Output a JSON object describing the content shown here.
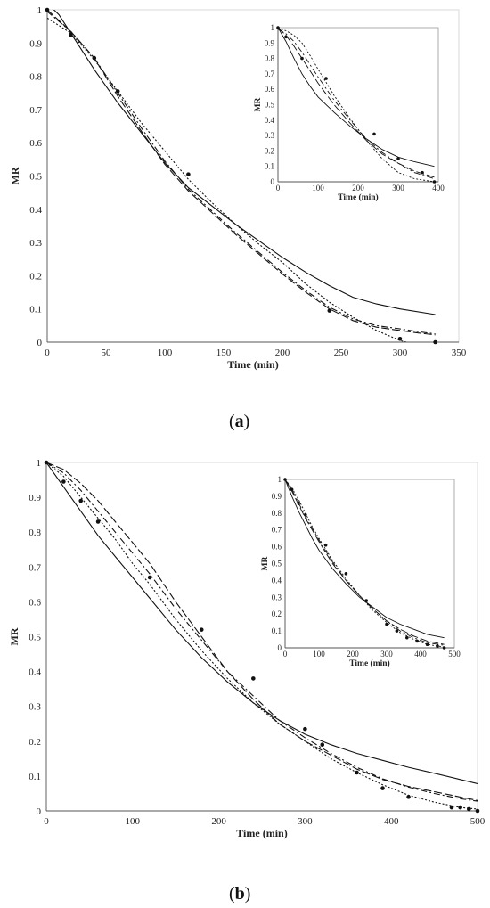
{
  "panels": [
    {
      "label_open": "(",
      "label_letter": "a",
      "label_close": ")"
    },
    {
      "label_open": "(",
      "label_letter": "b",
      "label_close": ")"
    }
  ],
  "chart_data": [
    {
      "type": "line",
      "xlabel": "Time (min)",
      "ylabel": "MR",
      "xlim": [
        0,
        350
      ],
      "ylim": [
        0,
        1
      ],
      "xticks": [
        0,
        50,
        100,
        150,
        200,
        250,
        300,
        350
      ],
      "yticks": [
        0,
        0.1,
        0.2,
        0.3,
        0.4,
        0.5,
        0.6,
        0.7,
        0.8,
        0.9,
        1
      ],
      "grid": false,
      "points": {
        "x": [
          0,
          20,
          40,
          60,
          120,
          240,
          300,
          330
        ],
        "y": [
          1.0,
          0.925,
          0.855,
          0.755,
          0.505,
          0.095,
          0.01,
          0.0
        ]
      },
      "series": [
        {
          "style": "solid",
          "x": [
            0,
            10,
            20,
            40,
            60,
            80,
            100,
            120,
            140,
            160,
            180,
            200,
            220,
            240,
            260,
            280,
            300,
            330
          ],
          "y": [
            1.02,
            0.985,
            0.93,
            0.82,
            0.72,
            0.63,
            0.54,
            0.465,
            0.41,
            0.355,
            0.305,
            0.255,
            0.21,
            0.17,
            0.135,
            0.115,
            0.1,
            0.083
          ]
        },
        {
          "style": "long-dash",
          "x": [
            0,
            20,
            40,
            60,
            80,
            100,
            120,
            140,
            160,
            180,
            200,
            220,
            240,
            260,
            280,
            300,
            315,
            330
          ],
          "y": [
            1.0,
            0.935,
            0.855,
            0.74,
            0.635,
            0.535,
            0.455,
            0.39,
            0.325,
            0.265,
            0.205,
            0.15,
            0.1,
            0.065,
            0.045,
            0.035,
            0.028,
            0.022
          ]
        },
        {
          "style": "dash-dot",
          "x": [
            0,
            20,
            40,
            60,
            80,
            100,
            120,
            140,
            160,
            180,
            200,
            220,
            240,
            260,
            280,
            300,
            315,
            330
          ],
          "y": [
            0.995,
            0.935,
            0.855,
            0.75,
            0.645,
            0.545,
            0.46,
            0.395,
            0.33,
            0.27,
            0.21,
            0.155,
            0.105,
            0.07,
            0.05,
            0.04,
            0.032,
            0.025
          ]
        },
        {
          "style": "dotted",
          "x": [
            0,
            20,
            40,
            60,
            80,
            100,
            120,
            140,
            160,
            180,
            200,
            220,
            240,
            260,
            280,
            300,
            315,
            330
          ],
          "y": [
            0.975,
            0.93,
            0.85,
            0.755,
            0.66,
            0.575,
            0.49,
            0.42,
            0.355,
            0.295,
            0.24,
            0.175,
            0.12,
            0.075,
            0.035,
            0.005,
            -0.01,
            -0.02
          ]
        }
      ],
      "inset": {
        "xlabel": "Time (min)",
        "ylabel": "MR",
        "xlim": [
          0,
          400
        ],
        "ylim": [
          0,
          1
        ],
        "xticks": [
          0,
          100,
          200,
          300,
          400
        ],
        "yticks": [
          0,
          0.1,
          0.2,
          0.3,
          0.4,
          0.5,
          0.6,
          0.7,
          0.8,
          0.9,
          1
        ],
        "points": {
          "x": [
            0,
            20,
            60,
            120,
            240,
            300,
            360,
            390
          ],
          "y": [
            1.0,
            0.94,
            0.8,
            0.67,
            0.31,
            0.15,
            0.06,
            0.0
          ]
        },
        "series": [
          {
            "style": "solid",
            "x": [
              0,
              20,
              40,
              60,
              80,
              100,
              140,
              180,
              220,
              260,
              300,
              340,
              390
            ],
            "y": [
              1.0,
              0.91,
              0.8,
              0.7,
              0.62,
              0.55,
              0.45,
              0.36,
              0.28,
              0.21,
              0.16,
              0.13,
              0.1
            ]
          },
          {
            "style": "long-dash",
            "x": [
              0,
              20,
              40,
              60,
              80,
              100,
              140,
              180,
              220,
              260,
              300,
              340,
              390
            ],
            "y": [
              1.0,
              0.95,
              0.88,
              0.8,
              0.72,
              0.64,
              0.5,
              0.38,
              0.27,
              0.18,
              0.12,
              0.07,
              0.03
            ]
          },
          {
            "style": "dash-dot",
            "x": [
              0,
              20,
              40,
              60,
              80,
              100,
              140,
              180,
              220,
              260,
              300,
              340,
              390
            ],
            "y": [
              0.99,
              0.96,
              0.91,
              0.84,
              0.76,
              0.68,
              0.53,
              0.4,
              0.28,
              0.19,
              0.12,
              0.06,
              0.02
            ]
          },
          {
            "style": "dotted",
            "x": [
              0,
              20,
              40,
              60,
              80,
              100,
              140,
              180,
              220,
              260,
              300,
              340,
              390
            ],
            "y": [
              1.0,
              0.98,
              0.95,
              0.9,
              0.82,
              0.73,
              0.56,
              0.41,
              0.27,
              0.15,
              0.06,
              0.02,
              0.0
            ]
          }
        ]
      }
    },
    {
      "type": "line",
      "xlabel": "Time (min)",
      "ylabel": "MR",
      "xlim": [
        0,
        500
      ],
      "ylim": [
        0,
        1
      ],
      "xticks": [
        0,
        100,
        200,
        300,
        400,
        500
      ],
      "yticks": [
        0,
        0.1,
        0.2,
        0.3,
        0.4,
        0.5,
        0.6,
        0.7,
        0.8,
        0.9,
        1
      ],
      "grid": false,
      "points": {
        "x": [
          0,
          20,
          40,
          60,
          120,
          180,
          240,
          300,
          320,
          360,
          390,
          420,
          470,
          480,
          490,
          500
        ],
        "y": [
          1.0,
          0.945,
          0.89,
          0.83,
          0.67,
          0.52,
          0.38,
          0.235,
          0.19,
          0.11,
          0.065,
          0.04,
          0.01,
          0.01,
          0.005,
          0.0
        ]
      },
      "series": [
        {
          "style": "solid",
          "x": [
            0,
            20,
            40,
            60,
            80,
            100,
            120,
            150,
            180,
            210,
            240,
            270,
            300,
            330,
            360,
            390,
            420,
            450,
            480,
            500
          ],
          "y": [
            1.0,
            0.93,
            0.86,
            0.79,
            0.73,
            0.67,
            0.61,
            0.52,
            0.44,
            0.37,
            0.31,
            0.26,
            0.22,
            0.19,
            0.165,
            0.145,
            0.125,
            0.108,
            0.09,
            0.078
          ]
        },
        {
          "style": "long-dash",
          "x": [
            0,
            20,
            40,
            60,
            80,
            100,
            120,
            150,
            180,
            210,
            240,
            270,
            300,
            330,
            360,
            390,
            420,
            450,
            480,
            500
          ],
          "y": [
            1.0,
            0.98,
            0.94,
            0.89,
            0.83,
            0.77,
            0.71,
            0.6,
            0.5,
            0.4,
            0.32,
            0.25,
            0.2,
            0.16,
            0.12,
            0.09,
            0.07,
            0.055,
            0.04,
            0.03
          ]
        },
        {
          "style": "dash-dot",
          "x": [
            0,
            20,
            40,
            60,
            80,
            100,
            120,
            150,
            180,
            210,
            240,
            270,
            300,
            330,
            360,
            390,
            420,
            450,
            480,
            500
          ],
          "y": [
            1.0,
            0.97,
            0.92,
            0.86,
            0.8,
            0.74,
            0.68,
            0.58,
            0.49,
            0.4,
            0.33,
            0.26,
            0.21,
            0.165,
            0.125,
            0.092,
            0.068,
            0.05,
            0.035,
            0.028
          ]
        },
        {
          "style": "dotted",
          "x": [
            0,
            20,
            40,
            60,
            80,
            100,
            120,
            150,
            180,
            210,
            240,
            270,
            300,
            330,
            360,
            390,
            420,
            450,
            480,
            500
          ],
          "y": [
            1.0,
            0.96,
            0.9,
            0.84,
            0.78,
            0.71,
            0.65,
            0.55,
            0.46,
            0.38,
            0.31,
            0.25,
            0.2,
            0.15,
            0.11,
            0.075,
            0.045,
            0.025,
            0.01,
            0.005
          ]
        }
      ],
      "inset": {
        "xlabel": "Time (min)",
        "ylabel": "MR",
        "xlim": [
          0,
          500
        ],
        "ylim": [
          0,
          1
        ],
        "xticks": [
          0,
          100,
          200,
          300,
          400,
          500
        ],
        "yticks": [
          0,
          0.1,
          0.2,
          0.3,
          0.4,
          0.5,
          0.6,
          0.7,
          0.8,
          0.9,
          1
        ],
        "points": {
          "x": [
            0,
            20,
            40,
            60,
            120,
            180,
            240,
            300,
            330,
            360,
            390,
            420,
            450,
            470
          ],
          "y": [
            1.0,
            0.94,
            0.86,
            0.79,
            0.61,
            0.44,
            0.28,
            0.14,
            0.1,
            0.06,
            0.04,
            0.02,
            0.01,
            0.0
          ]
        },
        "series": [
          {
            "style": "solid",
            "x": [
              0,
              20,
              40,
              60,
              80,
              100,
              140,
              180,
              220,
              260,
              300,
              340,
              380,
              420,
              470
            ],
            "y": [
              1.0,
              0.9,
              0.81,
              0.73,
              0.65,
              0.58,
              0.47,
              0.38,
              0.3,
              0.24,
              0.18,
              0.14,
              0.11,
              0.08,
              0.06
            ]
          },
          {
            "style": "long-dash",
            "x": [
              0,
              20,
              40,
              60,
              80,
              100,
              140,
              180,
              220,
              260,
              300,
              340,
              380,
              420,
              470
            ],
            "y": [
              1.0,
              0.93,
              0.85,
              0.77,
              0.7,
              0.63,
              0.5,
              0.4,
              0.31,
              0.23,
              0.16,
              0.11,
              0.07,
              0.04,
              0.02
            ]
          },
          {
            "style": "dash-dot",
            "x": [
              0,
              20,
              40,
              60,
              80,
              100,
              140,
              180,
              220,
              260,
              300,
              340,
              380,
              420,
              470
            ],
            "y": [
              1.0,
              0.94,
              0.86,
              0.78,
              0.71,
              0.64,
              0.51,
              0.4,
              0.31,
              0.23,
              0.16,
              0.1,
              0.06,
              0.03,
              0.015
            ]
          },
          {
            "style": "dotted",
            "x": [
              0,
              20,
              40,
              60,
              80,
              100,
              140,
              180,
              220,
              260,
              300,
              340,
              380,
              420,
              470
            ],
            "y": [
              1.0,
              0.95,
              0.88,
              0.8,
              0.72,
              0.65,
              0.52,
              0.41,
              0.31,
              0.22,
              0.15,
              0.09,
              0.05,
              0.02,
              0.005
            ]
          }
        ]
      }
    }
  ]
}
